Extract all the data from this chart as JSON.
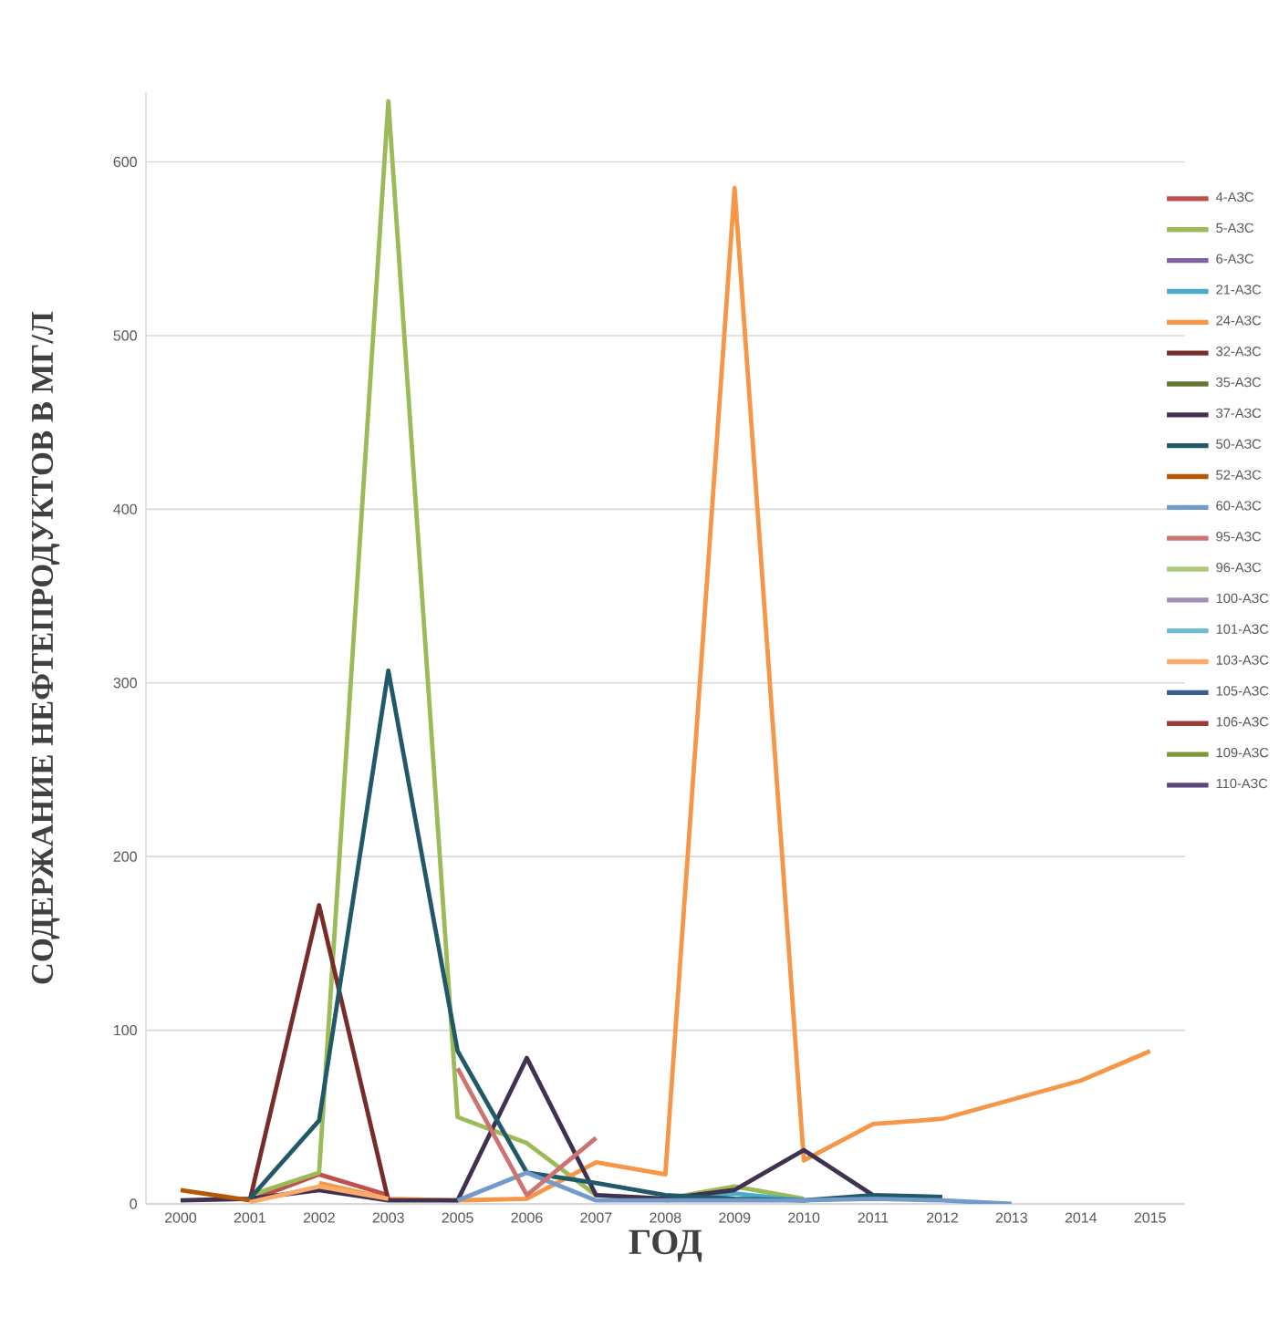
{
  "chart_data": {
    "type": "line",
    "xlabel": "ГОД",
    "ylabel": "СОДЕРЖАНИЕ НЕФТЕПРОДУКТОВ В МГ/Л",
    "categories": [
      "2000",
      "2001",
      "2002",
      "2003",
      "2005",
      "2006",
      "2007",
      "2008",
      "2009",
      "2010",
      "2011",
      "2012",
      "2013",
      "2014",
      "2015"
    ],
    "ylim": [
      0,
      640
    ],
    "yticks": [
      0,
      100,
      200,
      300,
      400,
      500,
      600
    ],
    "grid": "y",
    "legend": "right",
    "marker": "none",
    "line_style": "solid",
    "series": [
      {
        "name": "4-АЗС",
        "color": "#c0504d",
        "values": [
          null,
          2,
          17,
          5,
          null,
          null,
          null,
          null,
          null,
          null,
          null,
          null,
          null,
          null,
          null
        ]
      },
      {
        "name": "5-АЗС",
        "color": "#9bbb59",
        "values": [
          null,
          5,
          18,
          635,
          50,
          35,
          5,
          3,
          10,
          3,
          null,
          null,
          null,
          null,
          null
        ]
      },
      {
        "name": "6-АЗС",
        "color": "#8064a2",
        "values": [
          null,
          null,
          null,
          null,
          null,
          null,
          null,
          null,
          null,
          null,
          null,
          null,
          null,
          null,
          null
        ]
      },
      {
        "name": "21-АЗС",
        "color": "#4bacc6",
        "values": [
          null,
          null,
          null,
          null,
          null,
          null,
          null,
          2,
          6,
          2,
          null,
          null,
          null,
          null,
          null
        ]
      },
      {
        "name": "24-АЗС",
        "color": "#f79646",
        "values": [
          null,
          null,
          12,
          3,
          2,
          3,
          24,
          17,
          585,
          25,
          46,
          49,
          60,
          71,
          88
        ]
      },
      {
        "name": "32-АЗС",
        "color": "#772c2a",
        "values": [
          null,
          2,
          172,
          2,
          null,
          null,
          null,
          null,
          null,
          null,
          null,
          null,
          null,
          null,
          null
        ]
      },
      {
        "name": "35-АЗС",
        "color": "#5f7530",
        "values": [
          null,
          null,
          null,
          null,
          null,
          null,
          null,
          null,
          null,
          null,
          null,
          null,
          null,
          null,
          null
        ]
      },
      {
        "name": "37-АЗС",
        "color": "#403151",
        "values": [
          2,
          3,
          8,
          2,
          2,
          84,
          5,
          3,
          8,
          31,
          5,
          null,
          null,
          null,
          null
        ]
      },
      {
        "name": "50-АЗС",
        "color": "#215968",
        "values": [
          null,
          3,
          48,
          307,
          88,
          18,
          12,
          5,
          3,
          2,
          5,
          4,
          null,
          null,
          null
        ]
      },
      {
        "name": "52-АЗС",
        "color": "#b65708",
        "values": [
          8,
          2,
          null,
          null,
          null,
          null,
          null,
          null,
          null,
          null,
          null,
          null,
          null,
          null,
          null
        ]
      },
      {
        "name": "60-АЗС",
        "color": "#729aca",
        "values": [
          null,
          null,
          null,
          null,
          2,
          18,
          2,
          2,
          2,
          2,
          3,
          2,
          0,
          null,
          null
        ]
      },
      {
        "name": "95-АЗС",
        "color": "#cd7371",
        "values": [
          null,
          null,
          null,
          null,
          78,
          5,
          38,
          null,
          null,
          null,
          null,
          null,
          null,
          null,
          null
        ]
      },
      {
        "name": "96-АЗС",
        "color": "#afc97a",
        "values": [
          null,
          null,
          null,
          null,
          null,
          null,
          null,
          null,
          null,
          null,
          null,
          null,
          null,
          null,
          null
        ]
      },
      {
        "name": "100-АЗС",
        "color": "#a18fb8",
        "values": [
          null,
          null,
          null,
          null,
          null,
          null,
          null,
          null,
          null,
          null,
          null,
          null,
          null,
          null,
          null
        ]
      },
      {
        "name": "101-АЗС",
        "color": "#6fbdd1",
        "values": [
          null,
          null,
          null,
          null,
          null,
          null,
          null,
          null,
          null,
          null,
          null,
          null,
          null,
          null,
          null
        ]
      },
      {
        "name": "103-АЗС",
        "color": "#f9ab6b",
        "values": [
          null,
          1,
          10,
          3,
          null,
          null,
          null,
          null,
          null,
          null,
          null,
          null,
          null,
          null,
          null
        ]
      },
      {
        "name": "105-АЗС",
        "color": "#3a5f8e",
        "values": [
          null,
          null,
          null,
          null,
          null,
          null,
          null,
          null,
          null,
          null,
          null,
          null,
          null,
          null,
          null
        ]
      },
      {
        "name": "106-АЗС",
        "color": "#9c3a38",
        "values": [
          null,
          null,
          null,
          null,
          null,
          null,
          null,
          null,
          null,
          null,
          null,
          null,
          null,
          null,
          null
        ]
      },
      {
        "name": "109-АЗС",
        "color": "#7a9a3a",
        "values": [
          null,
          null,
          null,
          null,
          null,
          null,
          null,
          null,
          null,
          null,
          null,
          null,
          null,
          null,
          null
        ]
      },
      {
        "name": "110-АЗС",
        "color": "#5c4480",
        "values": [
          null,
          null,
          null,
          null,
          null,
          null,
          null,
          null,
          null,
          null,
          null,
          null,
          null,
          null,
          null
        ]
      }
    ]
  }
}
